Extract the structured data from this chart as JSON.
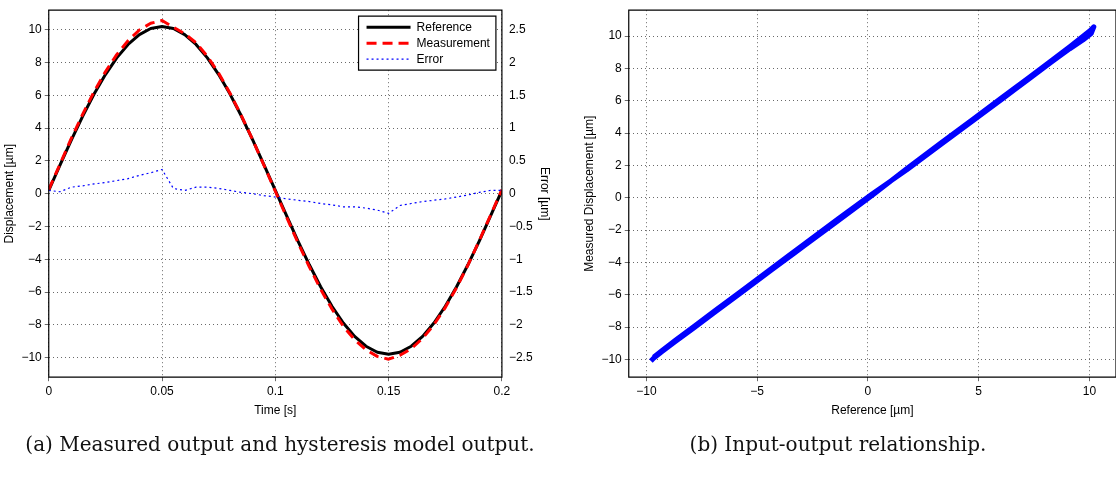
{
  "chart_data": [
    {
      "type": "line",
      "xlabel": "Time [s]",
      "ylabel": "Displacement [µm]",
      "y2label": "Error [µm]",
      "annotations": [
        "(a) Measured output and hysteresis model output."
      ],
      "x": [
        0,
        0.005,
        0.01,
        0.015,
        0.02,
        0.025,
        0.03,
        0.035,
        0.04,
        0.045,
        0.05,
        0.055,
        0.06,
        0.065,
        0.07,
        0.075,
        0.08,
        0.085,
        0.09,
        0.095,
        0.1,
        0.105,
        0.11,
        0.115,
        0.12,
        0.125,
        0.13,
        0.135,
        0.14,
        0.145,
        0.15,
        0.155,
        0.16,
        0.165,
        0.17,
        0.175,
        0.18,
        0.185,
        0.19,
        0.195,
        0.2
      ],
      "series": [
        {
          "name": "Reference",
          "color": "#000000",
          "line_style": "solid",
          "values": [
            0.2,
            1.76,
            3.29,
            4.74,
            6.08,
            7.27,
            8.29,
            9.11,
            9.71,
            10.08,
            10.2,
            10.08,
            9.71,
            9.11,
            8.29,
            7.27,
            6.08,
            4.74,
            3.29,
            1.76,
            0.2,
            -1.36,
            -2.89,
            -4.34,
            -5.68,
            -6.87,
            -7.89,
            -8.71,
            -9.31,
            -9.68,
            -9.8,
            -9.68,
            -9.31,
            -8.71,
            -7.89,
            -6.87,
            -5.68,
            -4.34,
            -2.89,
            -1.36,
            0.2
          ]
        },
        {
          "name": "Measurement",
          "color": "#ff0000",
          "line_style": "dashed",
          "values": [
            0.25,
            1.81,
            3.39,
            4.86,
            6.23,
            7.44,
            8.49,
            9.34,
            9.99,
            10.4,
            10.57,
            10.16,
            9.76,
            9.21,
            8.39,
            7.35,
            6.13,
            4.76,
            3.29,
            1.73,
            0.15,
            -1.44,
            -2.99,
            -4.46,
            -5.83,
            -7.04,
            -8.09,
            -8.91,
            -9.53,
            -9.93,
            -10.1,
            -9.86,
            -9.46,
            -8.83,
            -7.99,
            -6.95,
            -5.73,
            -4.36,
            -2.87,
            -1.31,
            0.25
          ]
        },
        {
          "name": "Error",
          "color": "#0000ff",
          "line_style": "dotted",
          "axis": "y2",
          "values": [
            0.05,
            0.03,
            0.1,
            0.12,
            0.15,
            0.17,
            0.2,
            0.23,
            0.28,
            0.32,
            0.37,
            0.08,
            0.05,
            0.1,
            0.1,
            0.08,
            0.05,
            0.02,
            0,
            -0.03,
            -0.05,
            -0.08,
            -0.1,
            -0.12,
            -0.15,
            -0.17,
            -0.2,
            -0.2,
            -0.22,
            -0.25,
            -0.3,
            -0.18,
            -0.15,
            -0.12,
            -0.1,
            -0.08,
            -0.05,
            -0.02,
            0.02,
            0.05,
            0.05
          ]
        }
      ],
      "xlim": [
        0,
        0.2
      ],
      "xticks": [
        0,
        0.05,
        0.1,
        0.15,
        0.2
      ],
      "ylim": [
        -11.2,
        11.2
      ],
      "yticks": [
        -10,
        -8,
        -6,
        -4,
        -2,
        0,
        2,
        4,
        6,
        8,
        10
      ],
      "y2lim": [
        -2.8,
        2.8
      ],
      "y2ticks": [
        -2.5,
        -2,
        -1.5,
        -1,
        -0.5,
        0,
        0.5,
        1,
        1.5,
        2,
        2.5
      ],
      "grid": true,
      "legend": "top right"
    },
    {
      "type": "line",
      "xlabel": "Reference [µm]",
      "ylabel": "Measured Displacement [µm]",
      "annotations": [
        "(b) Input-output relationship."
      ],
      "series": [
        {
          "color": "#0000ff",
          "line_style": "solid",
          "x": [
            -9.8,
            -9.68,
            -9.31,
            -8.71,
            -7.89,
            -6.87,
            -5.68,
            -4.34,
            -2.89,
            -1.36,
            0.2,
            1.76,
            3.29,
            4.74,
            6.08,
            7.27,
            8.29,
            9.11,
            9.71,
            10.08,
            10.2,
            10.08,
            9.71,
            9.11,
            8.29,
            7.27,
            6.08,
            4.74,
            3.29,
            1.76,
            0.2,
            -1.36,
            -2.89,
            -4.34,
            -5.68,
            -6.87,
            -7.89,
            -8.71,
            -9.31,
            -9.68
          ],
          "values": [
            -10.1,
            -9.93,
            -9.53,
            -8.91,
            -8.09,
            -7.04,
            -5.83,
            -4.46,
            -2.99,
            -1.44,
            0.15,
            1.81,
            3.39,
            4.86,
            6.23,
            7.44,
            8.49,
            9.34,
            9.99,
            10.4,
            10.57,
            10.16,
            9.76,
            9.21,
            8.39,
            7.35,
            6.13,
            4.76,
            3.29,
            1.73,
            0.25,
            -1.31,
            -2.87,
            -4.36,
            -5.73,
            -6.95,
            -7.99,
            -8.83,
            -9.46,
            -9.86
          ]
        }
      ],
      "xlim": [
        -10.8,
        11.2
      ],
      "xticks": [
        -10,
        -5,
        0,
        5,
        10
      ],
      "ylim": [
        -11.1,
        11.6
      ],
      "yticks": [
        -10,
        -8,
        -6,
        -4,
        -2,
        0,
        2,
        4,
        6,
        8,
        10
      ],
      "grid": true
    }
  ]
}
